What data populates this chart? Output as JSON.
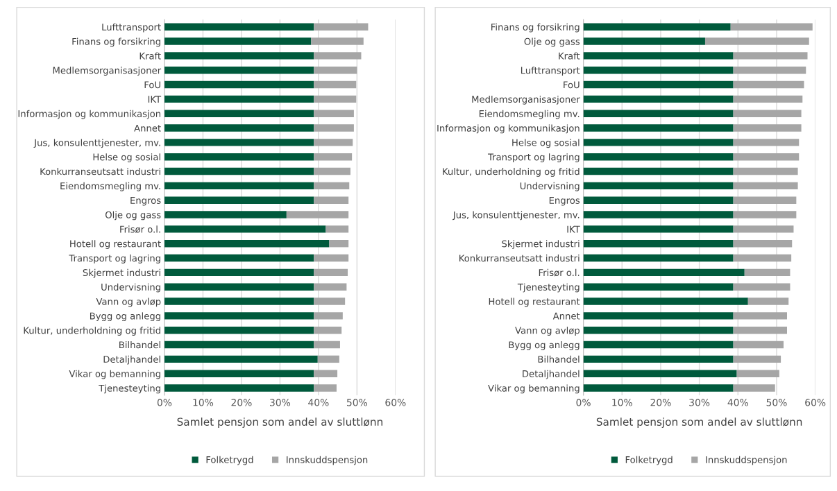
{
  "chart_data": [
    {
      "type": "bar",
      "orientation": "horizontal",
      "stacked": true,
      "xlabel": "Samlet pensjon som andel av sluttlønn",
      "legend": "bottom",
      "grid": "x",
      "categories": [
        "Lufttransport",
        "Finans og forsikring",
        "Kraft",
        "Medlemsorganisasjoner",
        "FoU",
        "IKT",
        "Informasjon og kommunikasjon",
        "Annet",
        "Jus, konsulenttjenester, mv.",
        "Helse og sosial",
        "Konkurranseutsatt industri",
        "Eiendomsmegling mv.",
        "Engros",
        "Olje og gass",
        "Frisør o.l.",
        "Hotell og restaurant",
        "Transport og lagring",
        "Skjermet industri",
        "Undervisning",
        "Vann og avløp",
        "Bygg og anlegg",
        "Kultur, underholdning og fritid",
        "Bilhandel",
        "Detaljhandel",
        "Vikar og bemanning",
        "Tjenesteyting"
      ],
      "xlim": [
        0,
        60
      ],
      "xticks": [
        {
          "value": 0,
          "label": "0%"
        },
        {
          "value": 10,
          "label": "10%"
        },
        {
          "value": 20,
          "label": "20%"
        },
        {
          "value": 30,
          "label": "30%"
        },
        {
          "value": 40,
          "label": "40%"
        },
        {
          "value": 50,
          "label": "50%"
        },
        {
          "value": 60,
          "label": "60%"
        }
      ],
      "series": [
        {
          "name": "Folketrygd",
          "color": "#005a3c",
          "values": [
            38.8,
            38.1,
            38.8,
            38.8,
            38.8,
            38.8,
            38.8,
            38.8,
            38.8,
            38.8,
            38.8,
            38.8,
            38.8,
            31.7,
            41.9,
            42.8,
            38.8,
            38.8,
            38.8,
            38.8,
            38.8,
            38.8,
            38.8,
            39.8,
            38.8,
            38.8
          ]
        },
        {
          "name": "Innskuddspensjon",
          "color": "#a6a6a6",
          "values": [
            14.1,
            13.6,
            12.3,
            11.2,
            11.0,
            11.0,
            10.4,
            10.4,
            10.1,
            9.9,
            9.5,
            9.2,
            9.0,
            16.1,
            5.9,
            5.0,
            9.0,
            8.8,
            8.5,
            8.1,
            7.5,
            7.2,
            6.8,
            5.6,
            6.1,
            5.9
          ]
        }
      ]
    },
    {
      "type": "bar",
      "orientation": "horizontal",
      "stacked": true,
      "xlabel": "Samlet pensjon som andel av sluttlønn",
      "legend": "bottom",
      "grid": "x",
      "categories": [
        "Finans og forsikring",
        "Olje og gass",
        "Kraft",
        "Lufttransport",
        "FoU",
        "Medlemsorganisasjoner",
        "Eiendomsmegling mv.",
        "Informasjon og kommunikasjon",
        "Helse og sosial",
        "Transport og lagring",
        "Kultur, underholdning og fritid",
        "Undervisning",
        "Engros",
        "Jus, konsulenttjenester, mv.",
        "IKT",
        "Skjermet industri",
        "Konkurranseutsatt industri",
        "Frisør o.l.",
        "Tjenesteyting",
        "Hotell og restaurant",
        "Annet",
        "Vann og avløp",
        "Bygg og anlegg",
        "Bilhandel",
        "Detaljhandel",
        "Vikar og bemanning"
      ],
      "xlim": [
        0,
        60
      ],
      "xticks": [
        {
          "value": 0,
          "label": "0%"
        },
        {
          "value": 10,
          "label": "10%"
        },
        {
          "value": 20,
          "label": "20%"
        },
        {
          "value": 30,
          "label": "30%"
        },
        {
          "value": 40,
          "label": "40%"
        },
        {
          "value": 50,
          "label": "50%"
        },
        {
          "value": 60,
          "label": "60%"
        }
      ],
      "series": [
        {
          "name": "Folketrygd",
          "color": "#005a3c",
          "values": [
            38.1,
            31.5,
            38.8,
            38.8,
            38.8,
            38.8,
            38.8,
            38.8,
            38.8,
            38.8,
            38.8,
            38.8,
            38.8,
            38.8,
            38.8,
            38.8,
            38.8,
            41.7,
            38.8,
            42.6,
            38.8,
            38.8,
            38.8,
            38.8,
            39.7,
            38.8
          ]
        },
        {
          "name": "Innskuddspensjon",
          "color": "#a6a6a6",
          "values": [
            21.2,
            26.9,
            19.2,
            18.8,
            18.3,
            17.9,
            17.6,
            17.6,
            17.0,
            17.0,
            16.7,
            16.7,
            16.3,
            16.3,
            15.6,
            15.2,
            15.0,
            11.8,
            14.7,
            10.5,
            13.9,
            13.9,
            13.0,
            12.3,
            11.0,
            10.8
          ]
        }
      ]
    }
  ]
}
